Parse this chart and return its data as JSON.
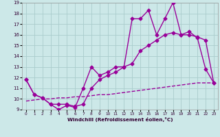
{
  "x": [
    0,
    1,
    2,
    3,
    4,
    5,
    6,
    7,
    8,
    9,
    10,
    11,
    12,
    13,
    14,
    15,
    16,
    17,
    18,
    19,
    20,
    21,
    22,
    23
  ],
  "line1": [
    11.8,
    10.4,
    10.1,
    9.5,
    9.0,
    9.4,
    9.2,
    11.0,
    13.0,
    12.2,
    12.5,
    13.0,
    13.0,
    17.5,
    17.5,
    18.3,
    16.0,
    17.5,
    19.0,
    16.0,
    16.3,
    15.7,
    12.8,
    11.5
  ],
  "line2": [
    11.8,
    10.4,
    10.1,
    9.5,
    9.5,
    9.5,
    9.3,
    9.5,
    11.0,
    11.8,
    12.2,
    12.5,
    13.0,
    13.3,
    14.5,
    15.0,
    15.5,
    16.0,
    16.2,
    16.0,
    16.0,
    15.8,
    15.5,
    11.5
  ],
  "line3": [
    9.8,
    9.9,
    10.0,
    10.0,
    10.1,
    10.1,
    10.2,
    10.2,
    10.3,
    10.4,
    10.4,
    10.5,
    10.6,
    10.7,
    10.8,
    10.9,
    11.0,
    11.1,
    11.2,
    11.3,
    11.4,
    11.5,
    11.5,
    11.5
  ],
  "color": "#990099",
  "bg_color": "#cce8e8",
  "grid_color": "#aacccc",
  "xlabel": "Windchill (Refroidissement éolien,°C)",
  "ylim": [
    9,
    19
  ],
  "xlim_min": -0.5,
  "xlim_max": 23.5,
  "yticks": [
    9,
    10,
    11,
    12,
    13,
    14,
    15,
    16,
    17,
    18,
    19
  ],
  "xticks": [
    0,
    1,
    2,
    3,
    4,
    5,
    6,
    7,
    8,
    9,
    10,
    11,
    12,
    13,
    14,
    15,
    16,
    17,
    18,
    19,
    20,
    21,
    22,
    23
  ],
  "marker": "D",
  "markersize": 2.5,
  "linewidth": 1.0
}
